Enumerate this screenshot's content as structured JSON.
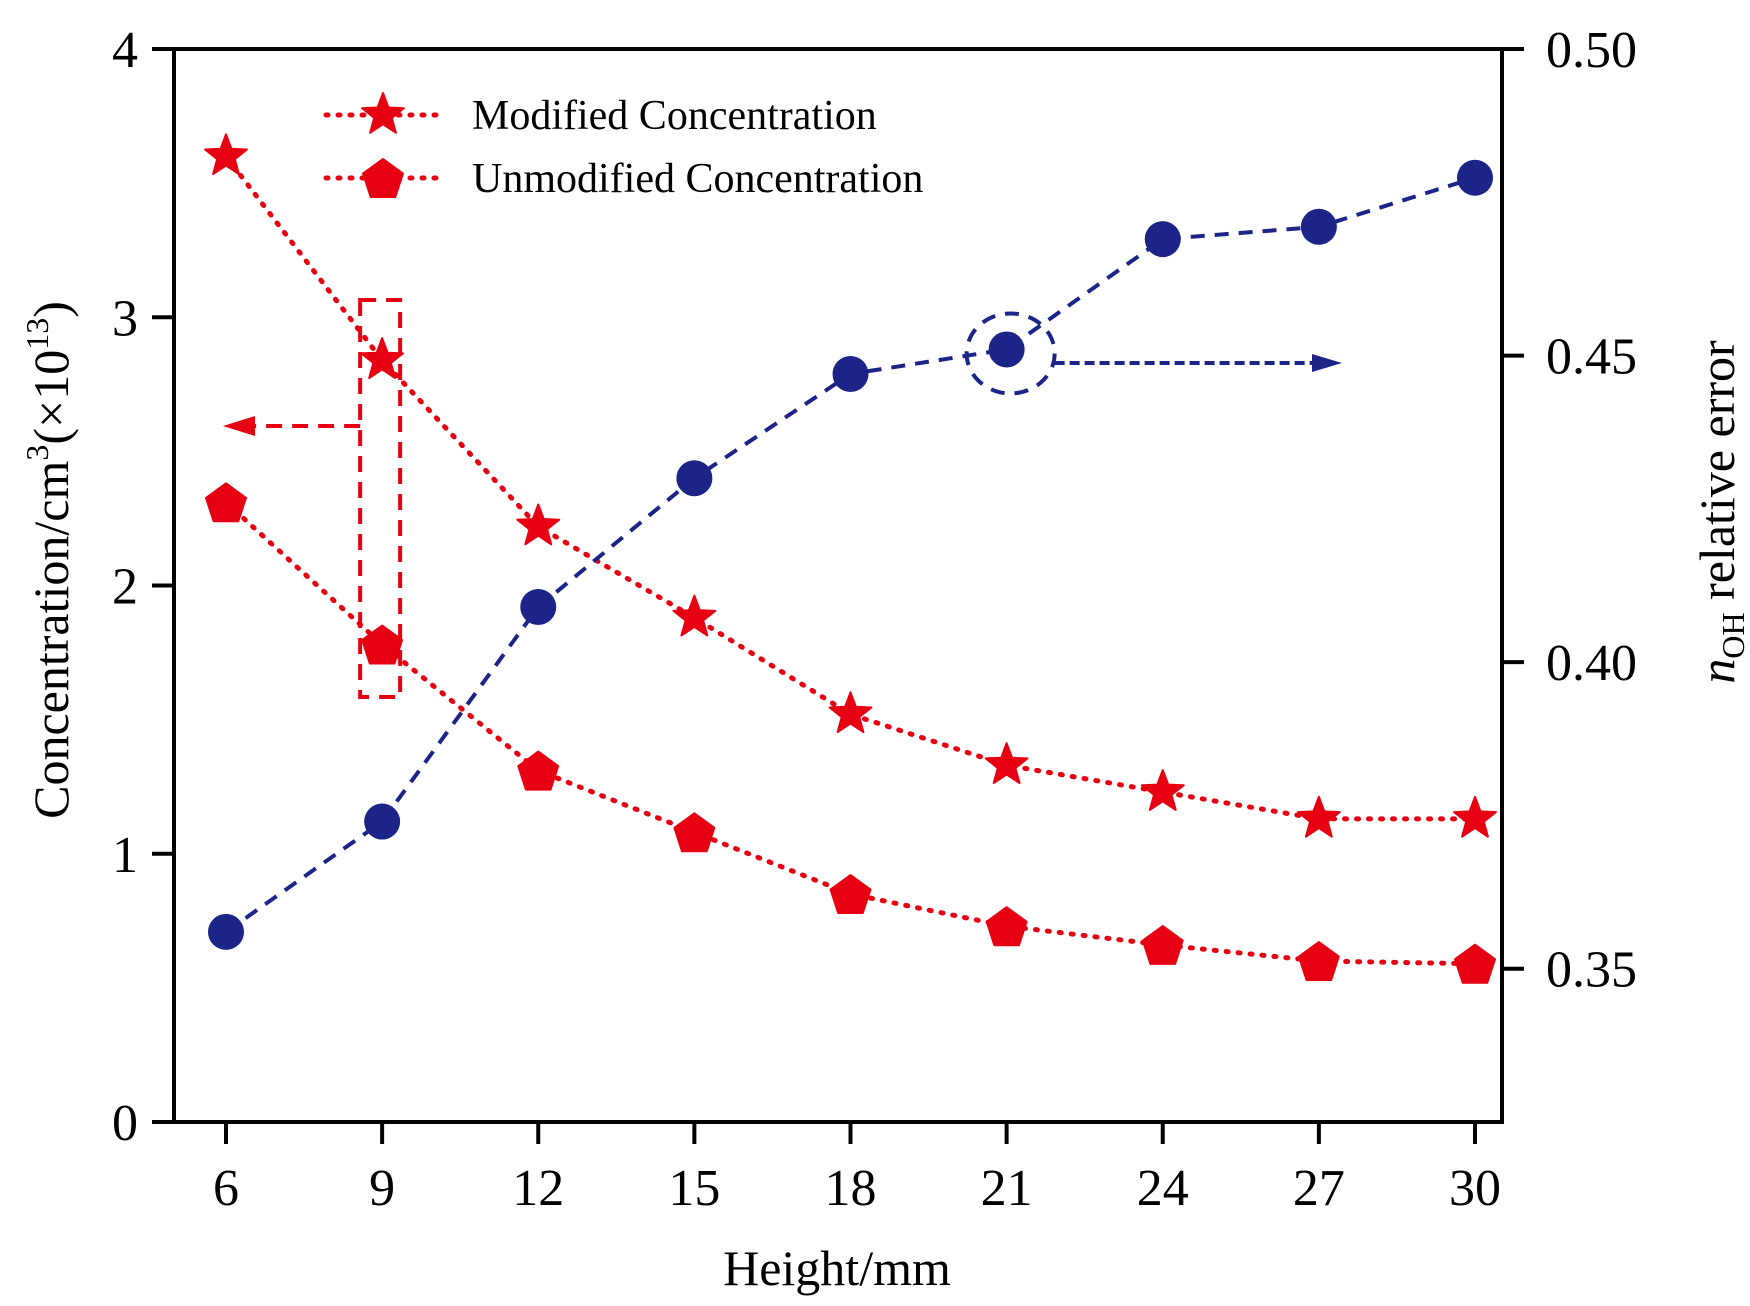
{
  "chart_data": {
    "type": "line",
    "title": "",
    "xlabel": "Height/mm",
    "ylabel": {
      "main": "Concentration/cm",
      "sup1": "3",
      "mid": "(×10",
      "sup2": "13",
      "end": ")"
    },
    "y2label": {
      "italic": "n",
      "sub": "OH",
      "rest": " relative error"
    },
    "x": [
      6,
      9,
      12,
      15,
      18,
      21,
      24,
      27,
      30
    ],
    "xlim": [
      4.8,
      31.7
    ],
    "xticks": [
      "6",
      "9",
      "12",
      "15",
      "18",
      "21",
      "24",
      "27",
      "30"
    ],
    "ylim": [
      0,
      4
    ],
    "yticks": [
      "0",
      "1",
      "2",
      "3",
      "4"
    ],
    "y2lim": [
      0.325,
      0.5
    ],
    "y2ticks": [
      "0.35",
      "0.40",
      "0.45",
      "0.50"
    ],
    "grid": false,
    "legend_position": "top-center",
    "series": [
      {
        "name": "Modified Concentration",
        "axis": "left",
        "marker": "star",
        "line_style": "dotted",
        "color": "#e60012",
        "values": [
          3.6,
          2.84,
          2.22,
          1.88,
          1.52,
          1.33,
          1.23,
          1.13,
          1.13
        ]
      },
      {
        "name": "Unmodified Concentration",
        "axis": "left",
        "marker": "pentagon",
        "line_style": "dotted",
        "color": "#e60012",
        "values": [
          2.31,
          1.78,
          1.31,
          1.08,
          0.85,
          0.73,
          0.66,
          0.6,
          0.59
        ]
      },
      {
        "name": "nOH relative error",
        "axis": "right",
        "marker": "circle",
        "line_style": "dashed",
        "color": "#1c2488",
        "values": [
          0.356,
          0.374,
          0.409,
          0.43,
          0.447,
          0.451,
          0.469,
          0.471,
          0.479
        ]
      }
    ],
    "annotations": [
      {
        "type": "dashed-box",
        "around_x": 9,
        "series": [
          "Modified Concentration",
          "Unmodified Concentration"
        ],
        "arrow": "left",
        "color": "#e60012",
        "meaning": "refers to left axis"
      },
      {
        "type": "dashed-circle",
        "around_x": 21,
        "series": [
          "nOH relative error"
        ],
        "arrow": "right",
        "color": "#1c2488",
        "meaning": "refers to right axis"
      }
    ]
  }
}
